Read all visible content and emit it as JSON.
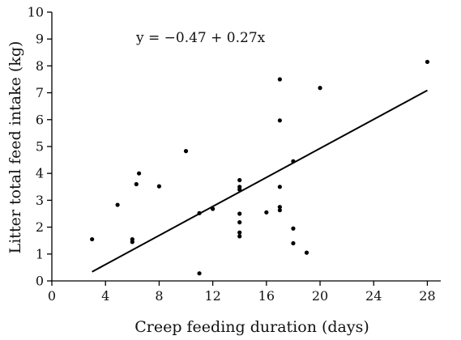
{
  "chart_data": {
    "type": "scatter",
    "title": "",
    "xlabel": "Creep feeding duration (days)",
    "ylabel": "Litter total feed intake (kg)",
    "xlim": [
      0,
      29
    ],
    "ylim": [
      0,
      10
    ],
    "x_ticks": [
      0,
      4,
      8,
      12,
      16,
      20,
      24,
      28
    ],
    "y_ticks": [
      0,
      1,
      2,
      3,
      4,
      5,
      6,
      7,
      8,
      9,
      10
    ],
    "grid": false,
    "annotation": "y = −0.47 + 0.27x",
    "trendline": {
      "intercept": -0.47,
      "slope": 0.27,
      "x_range": [
        3,
        28
      ]
    },
    "series": [
      {
        "points": [
          [
            3,
            1.55
          ],
          [
            4.9,
            2.83
          ],
          [
            6,
            1.55
          ],
          [
            6,
            1.45
          ],
          [
            6.3,
            3.6
          ],
          [
            6.5,
            4.0
          ],
          [
            8,
            3.52
          ],
          [
            10,
            4.83
          ],
          [
            11,
            2.52
          ],
          [
            11,
            0.28
          ],
          [
            12,
            2.68
          ],
          [
            14,
            3.75
          ],
          [
            14,
            3.5
          ],
          [
            14,
            3.4
          ],
          [
            14,
            2.5
          ],
          [
            14,
            2.18
          ],
          [
            14,
            1.8
          ],
          [
            14,
            1.66
          ],
          [
            16,
            2.55
          ],
          [
            17,
            7.5
          ],
          [
            17,
            5.97
          ],
          [
            17,
            3.5
          ],
          [
            17,
            2.75
          ],
          [
            17,
            2.63
          ],
          [
            18,
            4.45
          ],
          [
            18,
            1.95
          ],
          [
            18,
            1.4
          ],
          [
            19,
            1.05
          ],
          [
            20,
            7.18
          ],
          [
            28,
            8.15
          ]
        ]
      }
    ]
  }
}
